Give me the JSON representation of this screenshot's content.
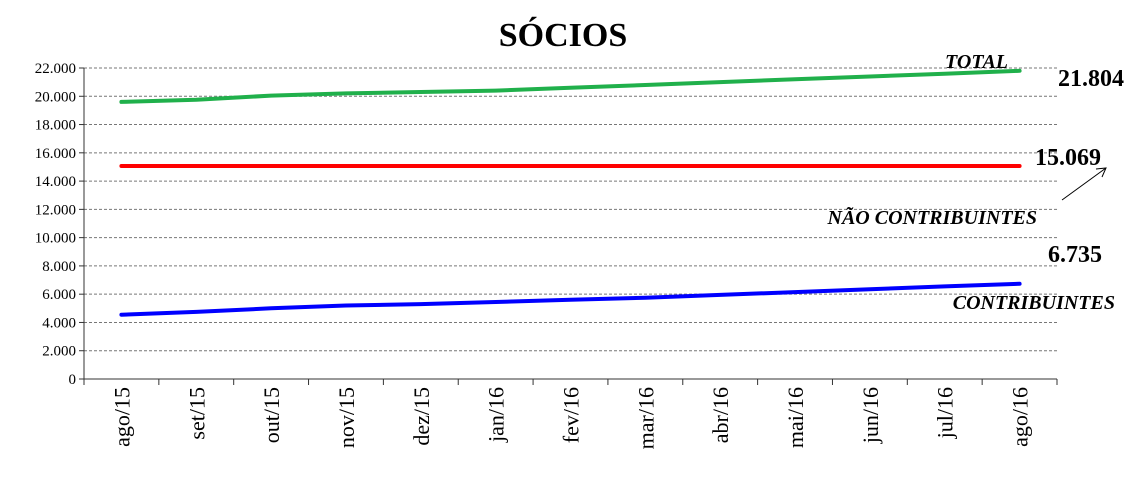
{
  "chart_data": {
    "type": "line",
    "title": "SÓCIOS",
    "xlabel": "",
    "ylabel": "",
    "categories": [
      "ago/15",
      "set/15",
      "out/15",
      "nov/15",
      "dez/15",
      "jan/16",
      "fev/16",
      "mar/16",
      "abr/16",
      "mai/16",
      "jun/16",
      "jul/16",
      "ago/16"
    ],
    "ylim": [
      0,
      22000
    ],
    "yticks": [
      "0",
      "2.000",
      "4.000",
      "6.000",
      "8.000",
      "10.000",
      "12.000",
      "14.000",
      "16.000",
      "18.000",
      "20.000",
      "22.000"
    ],
    "grid": true,
    "series": [
      {
        "name": "TOTAL",
        "color": "#20b04b",
        "values": [
          19600,
          19750,
          20050,
          20200,
          20300,
          20400,
          20600,
          20800,
          21000,
          21200,
          21400,
          21600,
          21804
        ],
        "end_label": "21.804"
      },
      {
        "name": "NÃO  CONTRIBUINTES",
        "color": "#ff0000",
        "values": [
          15069,
          15069,
          15069,
          15069,
          15069,
          15069,
          15069,
          15069,
          15069,
          15069,
          15069,
          15069,
          15069
        ],
        "end_label": "15.069"
      },
      {
        "name": "CONTRIBUINTES",
        "color": "#0000ff",
        "values": [
          4550,
          4750,
          5000,
          5200,
          5300,
          5450,
          5600,
          5750,
          5950,
          6150,
          6350,
          6550,
          6735
        ],
        "end_label": "6.735"
      }
    ]
  }
}
